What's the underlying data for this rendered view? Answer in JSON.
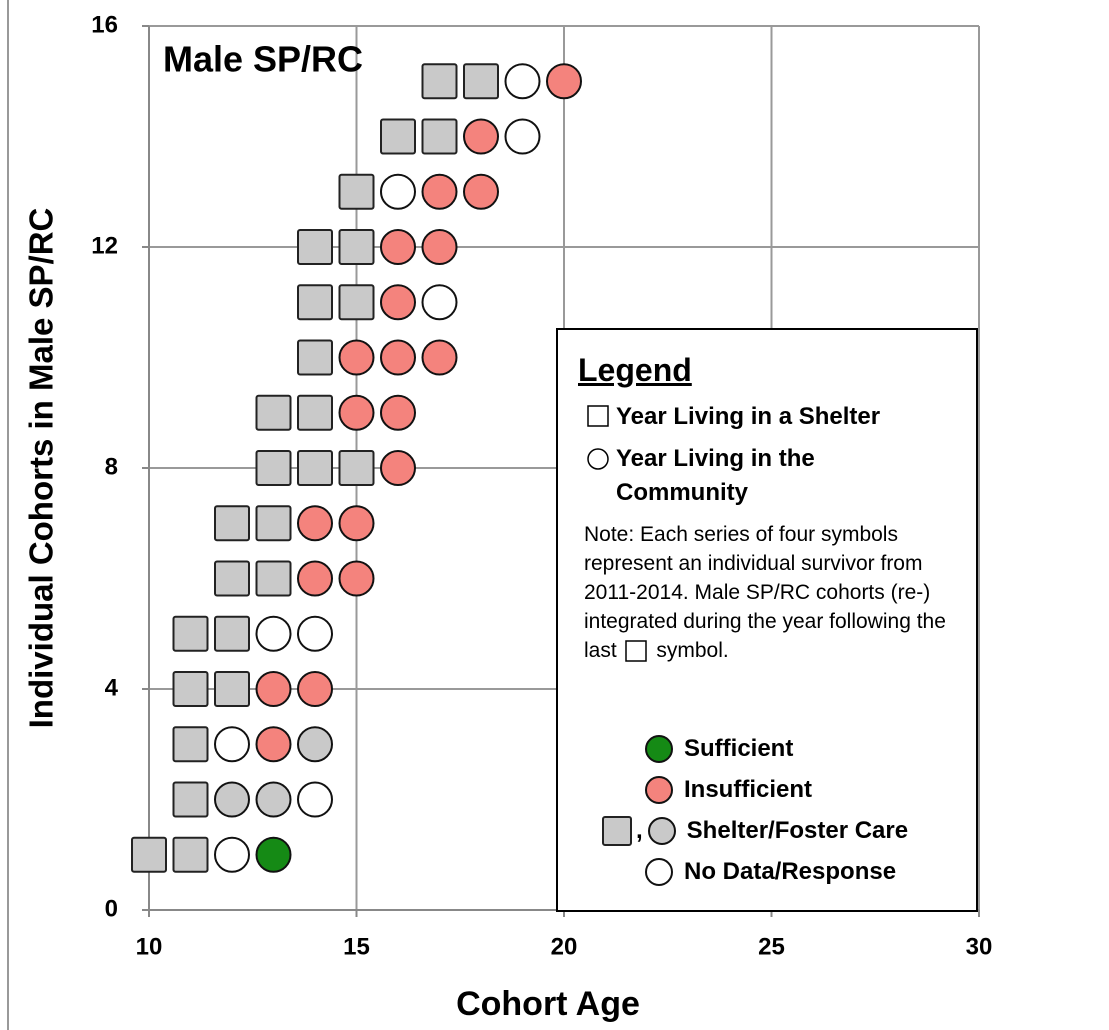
{
  "chart_data": {
    "type": "scatter",
    "title": "Male SP/RC",
    "xlabel": "Cohort Age",
    "ylabel": "Individual Cohorts in Male SP/RC",
    "xlim": [
      10,
      30
    ],
    "xticks": [
      10,
      15,
      20,
      25,
      30
    ],
    "ylim": [
      0,
      16
    ],
    "yticks": [
      0,
      4,
      8,
      12,
      16
    ],
    "grid": true,
    "series": [
      {
        "name": "Sufficient",
        "color": "#158a15",
        "marker": "circle",
        "x": [
          13
        ],
        "values": [
          1
        ]
      },
      {
        "name": "Insufficient",
        "color": "#f4837d",
        "marker": "circle",
        "x": [
          13,
          13,
          14,
          14,
          15,
          14,
          15,
          16,
          15,
          16,
          15,
          16,
          17,
          16,
          16,
          17,
          17,
          18,
          18,
          20
        ],
        "values": [
          3,
          4,
          4,
          6,
          6,
          7,
          7,
          8,
          9,
          9,
          10,
          10,
          10,
          11,
          12,
          12,
          13,
          13,
          14,
          15
        ]
      },
      {
        "name": "Shelter/Foster Care",
        "color": "#c9c9c9",
        "x": [
          10,
          11,
          11,
          11,
          11,
          12,
          11,
          12,
          12,
          13,
          12,
          13,
          13,
          14,
          15,
          13,
          14,
          14,
          14,
          15,
          14,
          15,
          15,
          16,
          17,
          17,
          18,
          12,
          13,
          14
        ],
        "values": [
          1,
          1,
          2,
          3,
          4,
          4,
          5,
          5,
          6,
          6,
          7,
          7,
          8,
          8,
          8,
          9,
          9,
          10,
          11,
          11,
          12,
          12,
          13,
          14,
          14,
          15,
          15,
          2,
          2,
          3
        ],
        "markers": [
          "square",
          "square",
          "square",
          "square",
          "square",
          "square",
          "square",
          "square",
          "square",
          "square",
          "square",
          "square",
          "square",
          "square",
          "square",
          "square",
          "square",
          "square",
          "square",
          "square",
          "square",
          "square",
          "square",
          "square",
          "square",
          "square",
          "square",
          "circle",
          "circle",
          "circle"
        ]
      },
      {
        "name": "No Data/Response",
        "color": "#ffffff",
        "marker": "circle",
        "x": [
          12,
          14,
          12,
          13,
          14,
          17,
          16,
          19,
          19
        ],
        "values": [
          1,
          2,
          3,
          5,
          5,
          11,
          13,
          14,
          15
        ]
      }
    ],
    "legend": {
      "title": "Legend",
      "shapes": [
        {
          "marker": "square",
          "label": "Year Living in a Shelter"
        },
        {
          "marker": "circle",
          "label": "Year Living in the Community"
        }
      ],
      "note": [
        "Note:  Each series of  four symbols represent an individual survivor from 2011-2014.  Male SP/RC cohorts (re-) integrated during the year following the last",
        "symbol."
      ],
      "shelter_separator": ","
    }
  }
}
